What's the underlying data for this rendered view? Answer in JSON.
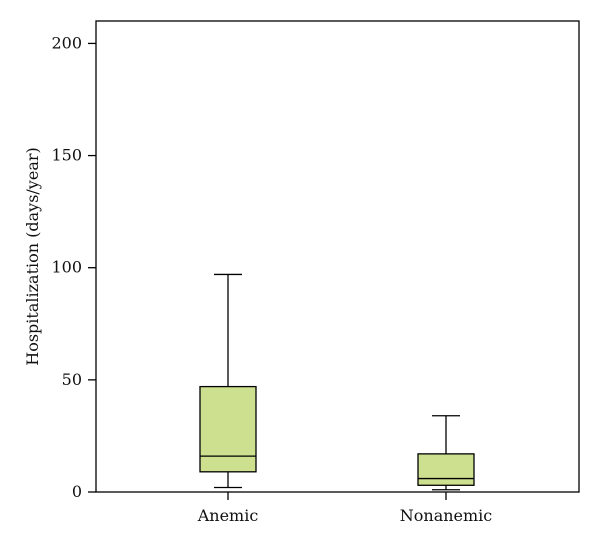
{
  "chart_data": {
    "type": "box",
    "ylabel": "Hospitalization (days/year)",
    "xlabel": "",
    "ylim": [
      0,
      210
    ],
    "yticks": [
      0,
      50,
      100,
      150,
      200
    ],
    "fill_color": "#cde08f",
    "stroke_color": "#000000",
    "categories": [
      "Anemic",
      "Nonanemic"
    ],
    "boxes": [
      {
        "name": "Anemic",
        "whisker_low": 2,
        "q1": 9,
        "median": 16,
        "q3": 47,
        "whisker_high": 97
      },
      {
        "name": "Nonanemic",
        "whisker_low": 1,
        "q1": 3,
        "median": 6,
        "q3": 17,
        "whisker_high": 34
      }
    ]
  }
}
